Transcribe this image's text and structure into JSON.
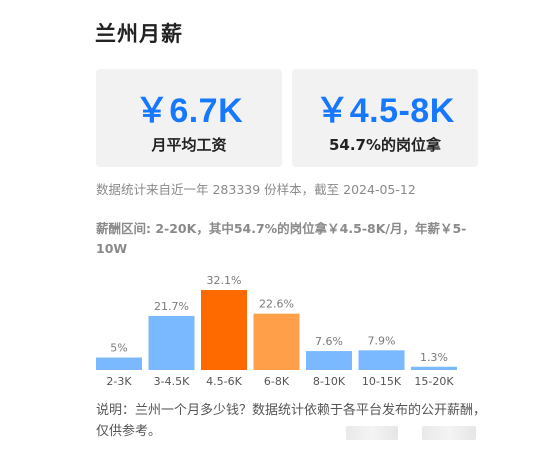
{
  "page": {
    "title": "兰州月薪"
  },
  "cards": [
    {
      "value": "￥6.7K",
      "label": "月平均工资"
    },
    {
      "value": "￥4.5-8K",
      "label": "54.7%的岗位拿"
    }
  ],
  "source_note": "数据统计来自近一年 283339 份样本，截至 2024-05-12",
  "range_summary": "薪酬区间: 2-20K，其中54.7%的岗位拿￥4.5-8K/月，年薪￥5-10W",
  "footnote": "说明：兰州一个月多少钱？数据统计依赖于各平台发布的公开薪酬，仅供参考。",
  "colors": {
    "accent": "#1677ff",
    "bar_light_blue": "#7ab8ff",
    "bar_highlight": "#ff6a00",
    "bar_secondary": "#ff9f4a"
  },
  "chart_data": {
    "type": "bar",
    "categories": [
      "2-3K",
      "3-4.5K",
      "4.5-6K",
      "6-8K",
      "8-10K",
      "10-15K",
      "15-20K"
    ],
    "values": [
      5,
      21.7,
      32.1,
      22.6,
      7.6,
      7.9,
      1.3
    ],
    "value_labels": [
      "5%",
      "21.7%",
      "32.1%",
      "22.6%",
      "7.6%",
      "7.9%",
      "1.3%"
    ],
    "bar_colors": [
      "#7ab8ff",
      "#7ab8ff",
      "#ff6a00",
      "#ff9f4a",
      "#7ab8ff",
      "#7ab8ff",
      "#7ab8ff"
    ],
    "ylim": [
      0,
      32.1
    ],
    "grid": false,
    "legend": "none"
  }
}
